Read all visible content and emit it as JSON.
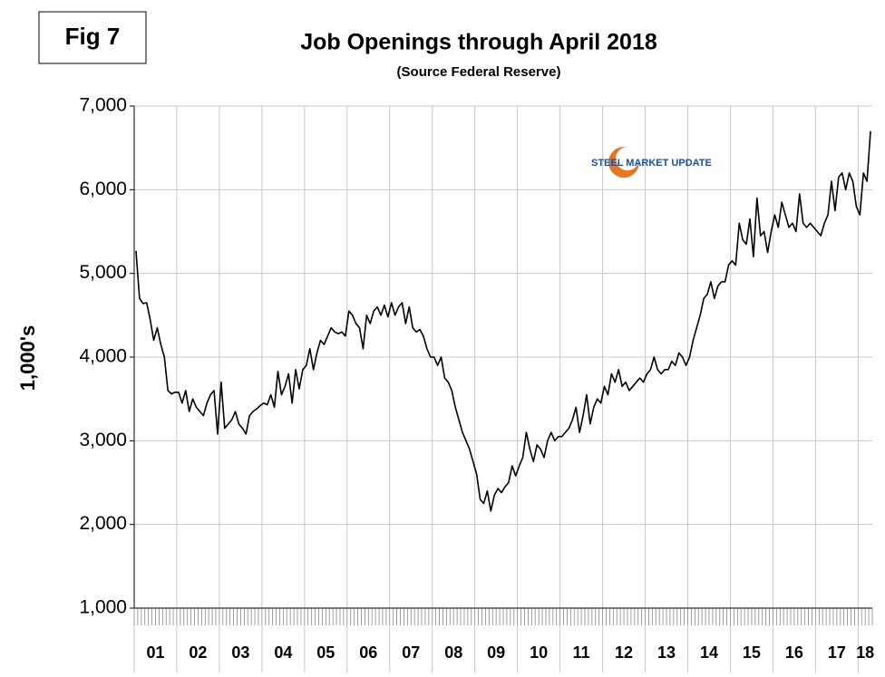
{
  "annotation": "Fig 7",
  "logo_text": "STEEL MARKET UPDATE",
  "chart_data": {
    "type": "line",
    "title": "Job Openings through April 2018",
    "subtitle": "(Source Federal Reserve)",
    "y_label": "1,000's",
    "categories": [
      "01",
      null,
      null,
      null,
      null,
      null,
      null,
      null,
      null,
      null,
      null,
      null,
      "02",
      null,
      null,
      null,
      null,
      null,
      null,
      null,
      null,
      null,
      null,
      null,
      "03",
      null,
      null,
      null,
      null,
      null,
      null,
      null,
      null,
      null,
      null,
      null,
      "04",
      null,
      null,
      null,
      null,
      null,
      null,
      null,
      null,
      null,
      null,
      null,
      "05",
      null,
      null,
      null,
      null,
      null,
      null,
      null,
      null,
      null,
      null,
      null,
      "06",
      null,
      null,
      null,
      null,
      null,
      null,
      null,
      null,
      null,
      null,
      null,
      "07",
      null,
      null,
      null,
      null,
      null,
      null,
      null,
      null,
      null,
      null,
      null,
      "08",
      null,
      null,
      null,
      null,
      null,
      null,
      null,
      null,
      null,
      null,
      null,
      "09",
      null,
      null,
      null,
      null,
      null,
      null,
      null,
      null,
      null,
      null,
      null,
      "10",
      null,
      null,
      null,
      null,
      null,
      null,
      null,
      null,
      null,
      null,
      null,
      "11",
      null,
      null,
      null,
      null,
      null,
      null,
      null,
      null,
      null,
      null,
      null,
      "12",
      null,
      null,
      null,
      null,
      null,
      null,
      null,
      null,
      null,
      null,
      null,
      "13",
      null,
      null,
      null,
      null,
      null,
      null,
      null,
      null,
      null,
      null,
      null,
      "14",
      null,
      null,
      null,
      null,
      null,
      null,
      null,
      null,
      null,
      null,
      null,
      "15",
      null,
      null,
      null,
      null,
      null,
      null,
      null,
      null,
      null,
      null,
      null,
      "16",
      null,
      null,
      null,
      null,
      null,
      null,
      null,
      null,
      null,
      null,
      null,
      "17",
      null,
      null,
      null,
      null,
      null,
      null,
      null,
      null,
      null,
      null,
      null,
      "18",
      null,
      null,
      null
    ],
    "values": [
      5271,
      4700,
      4640,
      4650,
      4450,
      4200,
      4350,
      4150,
      4000,
      3600,
      3560,
      3580,
      3580,
      3450,
      3600,
      3350,
      3500,
      3400,
      3350,
      3300,
      3450,
      3550,
      3600,
      3080,
      3700,
      3150,
      3200,
      3250,
      3350,
      3200,
      3150,
      3080,
      3300,
      3350,
      3380,
      3420,
      3450,
      3430,
      3550,
      3400,
      3830,
      3550,
      3650,
      3800,
      3450,
      3850,
      3620,
      3850,
      3900,
      4100,
      3850,
      4050,
      4200,
      4150,
      4250,
      4350,
      4300,
      4280,
      4300,
      4250,
      4550,
      4500,
      4400,
      4350,
      4100,
      4500,
      4400,
      4550,
      4600,
      4500,
      4620,
      4480,
      4650,
      4500,
      4600,
      4650,
      4400,
      4600,
      4350,
      4300,
      4330,
      4250,
      4100,
      4000,
      4000,
      3900,
      4000,
      3750,
      3700,
      3600,
      3400,
      3250,
      3100,
      3000,
      2900,
      2750,
      2600,
      2300,
      2250,
      2400,
      2160,
      2350,
      2430,
      2380,
      2450,
      2500,
      2700,
      2580,
      2700,
      2800,
      3100,
      2900,
      2750,
      2950,
      2900,
      2800,
      3000,
      3100,
      3000,
      3050,
      3050,
      3100,
      3150,
      3250,
      3400,
      3100,
      3300,
      3550,
      3200,
      3400,
      3500,
      3450,
      3650,
      3550,
      3800,
      3700,
      3850,
      3650,
      3700,
      3600,
      3650,
      3700,
      3750,
      3700,
      3800,
      3850,
      4000,
      3850,
      3800,
      3850,
      3850,
      3950,
      3900,
      4050,
      4000,
      3900,
      4000,
      4200,
      4350,
      4500,
      4700,
      4750,
      4900,
      4700,
      4850,
      4900,
      4900,
      5100,
      5150,
      5100,
      5600,
      5400,
      5350,
      5650,
      5200,
      5900,
      5450,
      5500,
      5250,
      5500,
      5700,
      5550,
      5850,
      5700,
      5550,
      5600,
      5500,
      5950,
      5600,
      5550,
      5600,
      5550,
      5500,
      5450,
      5600,
      5700,
      6100,
      5750,
      6150,
      6200,
      6000,
      6200,
      6100,
      5800,
      5700,
      6200,
      6100,
      6700
    ],
    "color": "#000000",
    "ylim": [
      1000,
      7000
    ],
    "yticks": [
      {
        "value": 1000,
        "label": "1,000"
      },
      {
        "value": 2000,
        "label": "2,000"
      },
      {
        "value": 3000,
        "label": "3,000"
      },
      {
        "value": 4000,
        "label": "4,000"
      },
      {
        "value": 5000,
        "label": "5,000"
      },
      {
        "value": 6000,
        "label": "6,000"
      },
      {
        "value": 7000,
        "label": "7,000"
      }
    ],
    "grid": true
  }
}
